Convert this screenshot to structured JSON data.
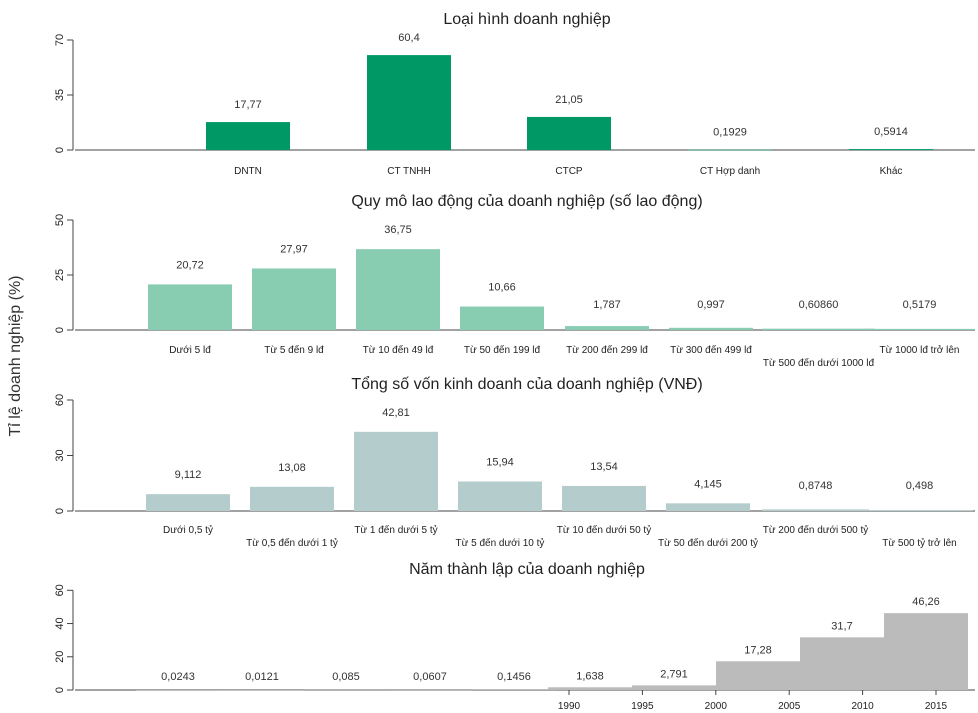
{
  "ylabel": "Tỉ lệ doanh nghiệp (%)",
  "chart_data": [
    {
      "type": "bar",
      "title": "Loại hình doanh nghiệp",
      "color": "#009966",
      "yticks": [
        0,
        35,
        70
      ],
      "ylim": [
        0,
        70
      ],
      "categories": [
        "DNTN",
        "CT TNHH",
        "CTCP",
        "CT Hợp danh",
        "Khác"
      ],
      "values": [
        17.77,
        60.4,
        21.05,
        0.1929,
        0.5914
      ],
      "labels": [
        "17,77",
        "60,4",
        "21,05",
        "0,1929",
        "0,5914"
      ]
    },
    {
      "type": "bar",
      "title": "Quy mô lao động của doanh nghiệp (số lao động)",
      "color": "#88ccb2",
      "yticks": [
        0,
        25,
        50
      ],
      "ylim": [
        0,
        50
      ],
      "categories": [
        "Dưới 5 lđ",
        "Từ 5 đến 9 lđ",
        "Từ 10 đến 49 lđ",
        "Từ 50 đến 199 lđ",
        "Từ 200 đến 299 lđ",
        "Từ 300 đến 499 lđ",
        "Từ 500 đến dưới 1000 lđ",
        "Từ 1000 lđ trở lên"
      ],
      "values": [
        20.72,
        27.97,
        36.75,
        10.66,
        1.787,
        0.997,
        0.6086,
        0.5179
      ],
      "labels": [
        "20,72",
        "27,97",
        "36,75",
        "10,66",
        "1,787",
        "0,997",
        "0,60860",
        "0,5179"
      ]
    },
    {
      "type": "bar",
      "title": "Tổng số vốn kinh doanh của doanh nghiệp (VNĐ)",
      "color": "#b4cccc",
      "yticks": [
        0,
        30,
        60
      ],
      "ylim": [
        0,
        60
      ],
      "categories": [
        "Dưới 0,5 tỷ",
        "Từ 0,5 đến dưới 1 tỷ",
        "Từ 1 đến dưới 5 tỷ",
        "Từ 5 đến dưới 10 tỷ",
        "Từ 10 đến dưới 50 tỷ",
        "Từ 50 đến dưới 200 tỷ",
        "Từ 200 đến dưới 500 tỷ",
        "Từ 500 tỷ trở lên"
      ],
      "values": [
        9.112,
        13.08,
        42.81,
        15.94,
        13.54,
        4.145,
        0.8748,
        0.498
      ],
      "labels": [
        "9,112",
        "13,08",
        "42,81",
        "15,94",
        "13,54",
        "4,145",
        "0,8748",
        "0,498"
      ]
    },
    {
      "type": "bar",
      "title": "Năm thành lập của doanh nghiệp",
      "color": "#bbbbbb",
      "yticks": [
        0,
        20,
        40,
        60
      ],
      "ylim": [
        0,
        65
      ],
      "xticks": [
        1990,
        1995,
        2000,
        2005,
        2010,
        2015
      ],
      "values": [
        0.0243,
        0.0121,
        0.085,
        0.0607,
        0.1456,
        1.638,
        2.791,
        17.28,
        31.7,
        46.26
      ],
      "labels": [
        "0,0243",
        "0,0121",
        "0,085",
        "0,0607",
        "0,1456",
        "1,638",
        "2,791",
        "17,28",
        "31,7",
        "46,26"
      ]
    }
  ]
}
